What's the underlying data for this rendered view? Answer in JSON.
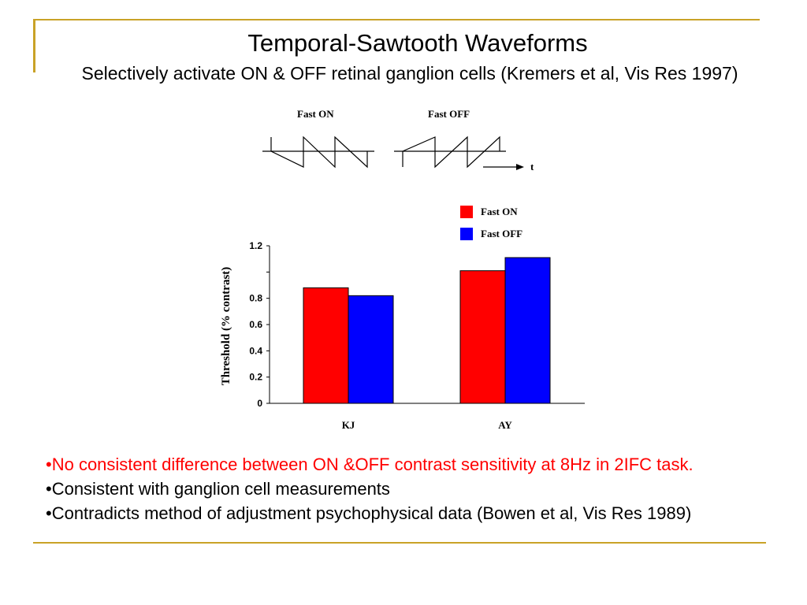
{
  "slide": {
    "title": "Temporal-Sawtooth Waveforms",
    "subtitle": "Selectively activate ON & OFF retinal ganglion cells (Kremers et al, Vis Res 1997)",
    "accent_color": "#c9a227"
  },
  "waveforms": {
    "on_label": "Fast ON",
    "off_label": "Fast OFF",
    "time_label": "t"
  },
  "bullets": [
    {
      "text": "•No consistent difference between ON &OFF contrast sensitivity at 8Hz in 2IFC task.",
      "color": "#ff0000"
    },
    {
      "text": "•Consistent with ganglion cell measurements",
      "color": "#000000"
    },
    {
      "text": "•Contradicts method of adjustment psychophysical data (Bowen et al, Vis Res 1989)",
      "color": "#000000"
    }
  ],
  "chart_data": {
    "type": "bar",
    "categories": [
      "KJ",
      "AY"
    ],
    "series": [
      {
        "name": "Fast ON",
        "values": [
          0.88,
          1.01
        ],
        "color": "#ff0000"
      },
      {
        "name": "Fast OFF",
        "values": [
          0.82,
          1.11
        ],
        "color": "#0000ff"
      }
    ],
    "ylabel": "Threshold (% contrast)",
    "xlabel": "",
    "ylim": [
      0,
      1.2
    ],
    "yticks": [
      "0",
      "0.2",
      "0.4",
      "0.6",
      "0.8",
      "1.2"
    ],
    "ytick_values": [
      0,
      0.2,
      0.4,
      0.6,
      0.8,
      1.2
    ],
    "legend": "top-right",
    "grid": false
  }
}
